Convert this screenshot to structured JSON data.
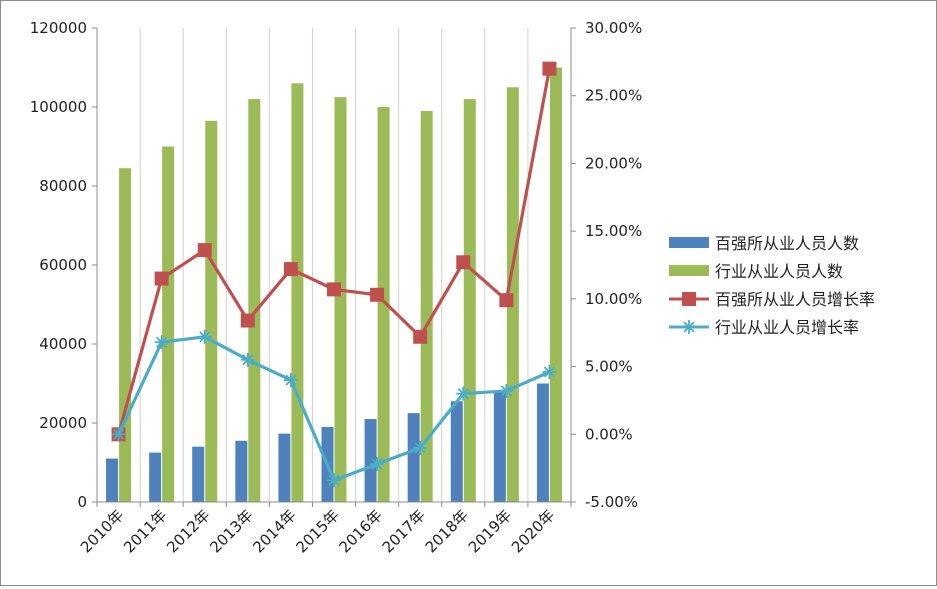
{
  "chart_data": {
    "type": "bar",
    "title": "",
    "xlabel": "",
    "ylabel": "",
    "categories": [
      "2010年",
      "2011年",
      "2012年",
      "2013年",
      "2014年",
      "2015年",
      "2016年",
      "2017年",
      "2018年",
      "2019年",
      "2020年"
    ],
    "y_left": {
      "ylim": [
        0,
        120000
      ],
      "ticks": [
        0,
        20000,
        40000,
        60000,
        80000,
        100000,
        120000
      ],
      "tick_labels": [
        "0",
        "20000",
        "40000",
        "60000",
        "80000",
        "100000",
        "120000"
      ]
    },
    "y_right": {
      "ylim": [
        -0.05,
        0.3
      ],
      "ticks": [
        -0.05,
        0,
        0.05,
        0.1,
        0.15,
        0.2,
        0.25,
        0.3
      ],
      "tick_labels": [
        "-5.00%",
        "0.00%",
        "5.00%",
        "10.00%",
        "15.00%",
        "20.00%",
        "25.00%",
        "30.00%"
      ]
    },
    "grid": "vertical",
    "legend_position": "right",
    "series": [
      {
        "name": "百强所从业人员人数",
        "kind": "bar",
        "axis": "left",
        "color": "#4f81bd",
        "values": [
          11000,
          12500,
          14000,
          15500,
          17300,
          19000,
          21000,
          22500,
          25500,
          28000,
          30000
        ]
      },
      {
        "name": "行业从业人员人数",
        "kind": "bar",
        "axis": "left",
        "color": "#9bbb59",
        "values": [
          84500,
          90000,
          96500,
          102000,
          106000,
          102500,
          100000,
          99000,
          102000,
          105000,
          110000
        ]
      },
      {
        "name": "百强所从业人员增长率",
        "kind": "line",
        "axis": "right",
        "color": "#c0504d",
        "marker": "square",
        "values": [
          0.0,
          0.115,
          0.136,
          0.084,
          0.122,
          0.107,
          0.103,
          0.072,
          0.127,
          0.099,
          0.27
        ]
      },
      {
        "name": "行业从业人员增长率",
        "kind": "line",
        "axis": "right",
        "color": "#4bacc6",
        "marker": "star",
        "values": [
          0.0,
          0.068,
          0.072,
          0.055,
          0.04,
          -0.034,
          -0.022,
          -0.01,
          0.03,
          0.032,
          0.046
        ]
      }
    ]
  }
}
